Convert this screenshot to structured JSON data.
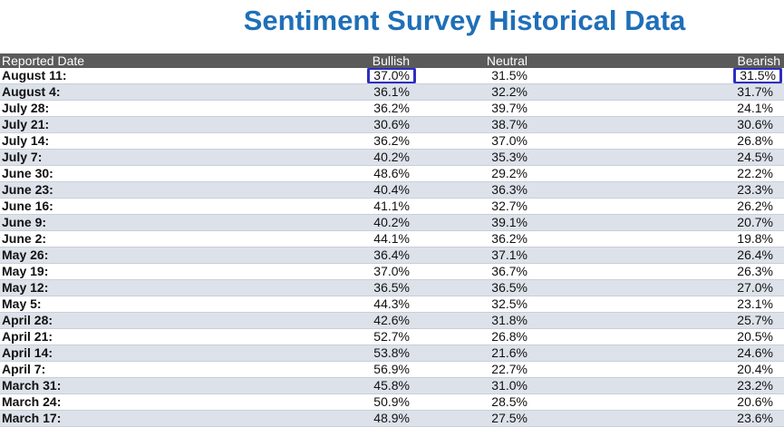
{
  "title": "Sentiment Survey Historical Data",
  "headers": {
    "date": "Reported Date",
    "bullish": "Bullish",
    "neutral": "Neutral",
    "bearish": "Bearish"
  },
  "highlight_color": "#2e2ec4",
  "rows": [
    {
      "date": "August 11:",
      "bullish": "37.0%",
      "neutral": "31.5%",
      "bearish": "31.5%",
      "highlighted": true
    },
    {
      "date": "August 4:",
      "bullish": "36.1%",
      "neutral": "32.2%",
      "bearish": "31.7%"
    },
    {
      "date": "July 28:",
      "bullish": "36.2%",
      "neutral": "39.7%",
      "bearish": "24.1%"
    },
    {
      "date": "July 21:",
      "bullish": "30.6%",
      "neutral": "38.7%",
      "bearish": "30.6%"
    },
    {
      "date": "July 14:",
      "bullish": "36.2%",
      "neutral": "37.0%",
      "bearish": "26.8%"
    },
    {
      "date": "July 7:",
      "bullish": "40.2%",
      "neutral": "35.3%",
      "bearish": "24.5%"
    },
    {
      "date": "June 30:",
      "bullish": "48.6%",
      "neutral": "29.2%",
      "bearish": "22.2%"
    },
    {
      "date": "June 23:",
      "bullish": "40.4%",
      "neutral": "36.3%",
      "bearish": "23.3%"
    },
    {
      "date": "June 16:",
      "bullish": "41.1%",
      "neutral": "32.7%",
      "bearish": "26.2%"
    },
    {
      "date": "June 9:",
      "bullish": "40.2%",
      "neutral": "39.1%",
      "bearish": "20.7%"
    },
    {
      "date": "June 2:",
      "bullish": "44.1%",
      "neutral": "36.2%",
      "bearish": "19.8%"
    },
    {
      "date": "May 26:",
      "bullish": "36.4%",
      "neutral": "37.1%",
      "bearish": "26.4%"
    },
    {
      "date": "May 19:",
      "bullish": "37.0%",
      "neutral": "36.7%",
      "bearish": "26.3%"
    },
    {
      "date": "May 12:",
      "bullish": "36.5%",
      "neutral": "36.5%",
      "bearish": "27.0%"
    },
    {
      "date": "May 5:",
      "bullish": "44.3%",
      "neutral": "32.5%",
      "bearish": "23.1%"
    },
    {
      "date": "April 28:",
      "bullish": "42.6%",
      "neutral": "31.8%",
      "bearish": "25.7%"
    },
    {
      "date": "April 21:",
      "bullish": "52.7%",
      "neutral": "26.8%",
      "bearish": "20.5%"
    },
    {
      "date": "April 14:",
      "bullish": "53.8%",
      "neutral": "21.6%",
      "bearish": "24.6%"
    },
    {
      "date": "April 7:",
      "bullish": "56.9%",
      "neutral": "22.7%",
      "bearish": "20.4%"
    },
    {
      "date": "March 31:",
      "bullish": "45.8%",
      "neutral": "31.0%",
      "bearish": "23.2%"
    },
    {
      "date": "March 24:",
      "bullish": "50.9%",
      "neutral": "28.5%",
      "bearish": "20.6%"
    },
    {
      "date": "March 17:",
      "bullish": "48.9%",
      "neutral": "27.5%",
      "bearish": "23.6%"
    }
  ]
}
